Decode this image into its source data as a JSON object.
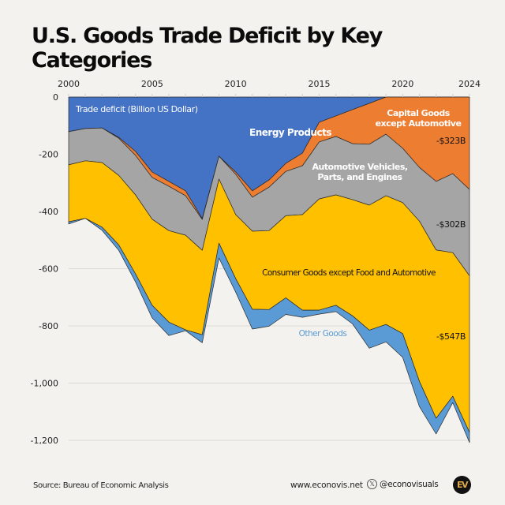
{
  "title": "U.S. Goods Trade Deficit by Key Categories",
  "footer": {
    "source": "Source: Bureau of Economic Analysis",
    "website": "www.econovis.net",
    "social_handle": "@econovisuals",
    "social_icon": "x-logo-icon",
    "logo_text": "EV"
  },
  "chart_data": {
    "type": "area",
    "stacked": true,
    "title": "U.S. Goods Trade Deficit by Key Categories",
    "ylabel": "Trade deficit (Billion US Dollar)",
    "xlabel": "",
    "ylim": [
      -1200,
      0
    ],
    "xlim": [
      2000,
      2024
    ],
    "grid": true,
    "x_axis_position": "top",
    "x_ticks": [
      "2000",
      "2005",
      "2010",
      "2015",
      "2020",
      "2024"
    ],
    "y_ticks": [
      "0",
      "-200",
      "-400",
      "-600",
      "-800",
      "-1,000",
      "-1,200"
    ],
    "y_tick_values": [
      0,
      -200,
      -400,
      -600,
      -800,
      -1000,
      -1200
    ],
    "x": [
      2000,
      2001,
      2002,
      2003,
      2004,
      2005,
      2006,
      2007,
      2008,
      2009,
      2010,
      2011,
      2012,
      2013,
      2014,
      2015,
      2016,
      2017,
      2018,
      2019,
      2020,
      2021,
      2022,
      2023,
      2024
    ],
    "series": [
      {
        "name": "Energy Products",
        "color": "#4472c4",
        "label_color": "#ffffff",
        "values": [
          -121,
          -110,
          -108,
          -141,
          -190,
          -262,
          -295,
          -328,
          -425,
          -207,
          -262,
          -328,
          -290,
          -232,
          -196,
          -88,
          -66,
          -44,
          -22,
          0,
          0,
          0,
          0,
          0,
          0
        ]
      },
      {
        "name": "Capital Goods except Automotive",
        "color": "#ed7d31",
        "label_color": "#ffffff",
        "values": [
          0,
          0,
          0,
          -3,
          -14,
          -19,
          -17,
          -17,
          -3,
          0,
          -8,
          -22,
          -25,
          -28,
          -44,
          -69,
          -72,
          -119,
          -143,
          -130,
          -179,
          -246,
          -295,
          -268,
          -323
        ],
        "end_label": "-$323B"
      },
      {
        "name": "Automotive Vehicles, Parts, and Engines",
        "color": "#a5a5a5",
        "label_color": "#ffffff",
        "values": [
          -116,
          -113,
          -121,
          -130,
          -138,
          -146,
          -155,
          -138,
          -108,
          -80,
          -141,
          -119,
          -152,
          -155,
          -171,
          -199,
          -204,
          -196,
          -213,
          -215,
          -190,
          -188,
          -240,
          -276,
          -302
        ],
        "end_label": "-$302B"
      },
      {
        "name": "Consumer Goods except Food and Automotive",
        "color": "#ffc000",
        "label_color": "#111111",
        "values": [
          -199,
          -201,
          -226,
          -243,
          -276,
          -301,
          -320,
          -331,
          -295,
          -224,
          -224,
          -273,
          -276,
          -287,
          -334,
          -389,
          -386,
          -406,
          -437,
          -450,
          -458,
          -560,
          -588,
          -502,
          -547
        ],
        "end_label": "-$547B"
      },
      {
        "name": "Other Goods",
        "color": "#5b9bd5",
        "label_color": "#5b9bd5",
        "values": [
          -8,
          0,
          -11,
          -19,
          -28,
          -44,
          -47,
          -3,
          -28,
          -52,
          -47,
          -69,
          -58,
          -58,
          -25,
          -14,
          -22,
          -28,
          -63,
          -61,
          -83,
          -88,
          -55,
          -22,
          -36
        ]
      }
    ],
    "labels": {
      "axis_note": "Trade deficit (Billion US Dollar)",
      "energy": "Energy Products",
      "capital_line1": "Capital Goods",
      "capital_line2": "except Automotive",
      "auto_line1": "Automotive Vehicles,",
      "auto_line2": "Parts, and Engines",
      "consumer": "Consumer Goods except Food and Automotive",
      "other": "Other Goods",
      "end_capital": "-$323B",
      "end_auto": "-$302B",
      "end_consumer": "-$547B"
    }
  }
}
